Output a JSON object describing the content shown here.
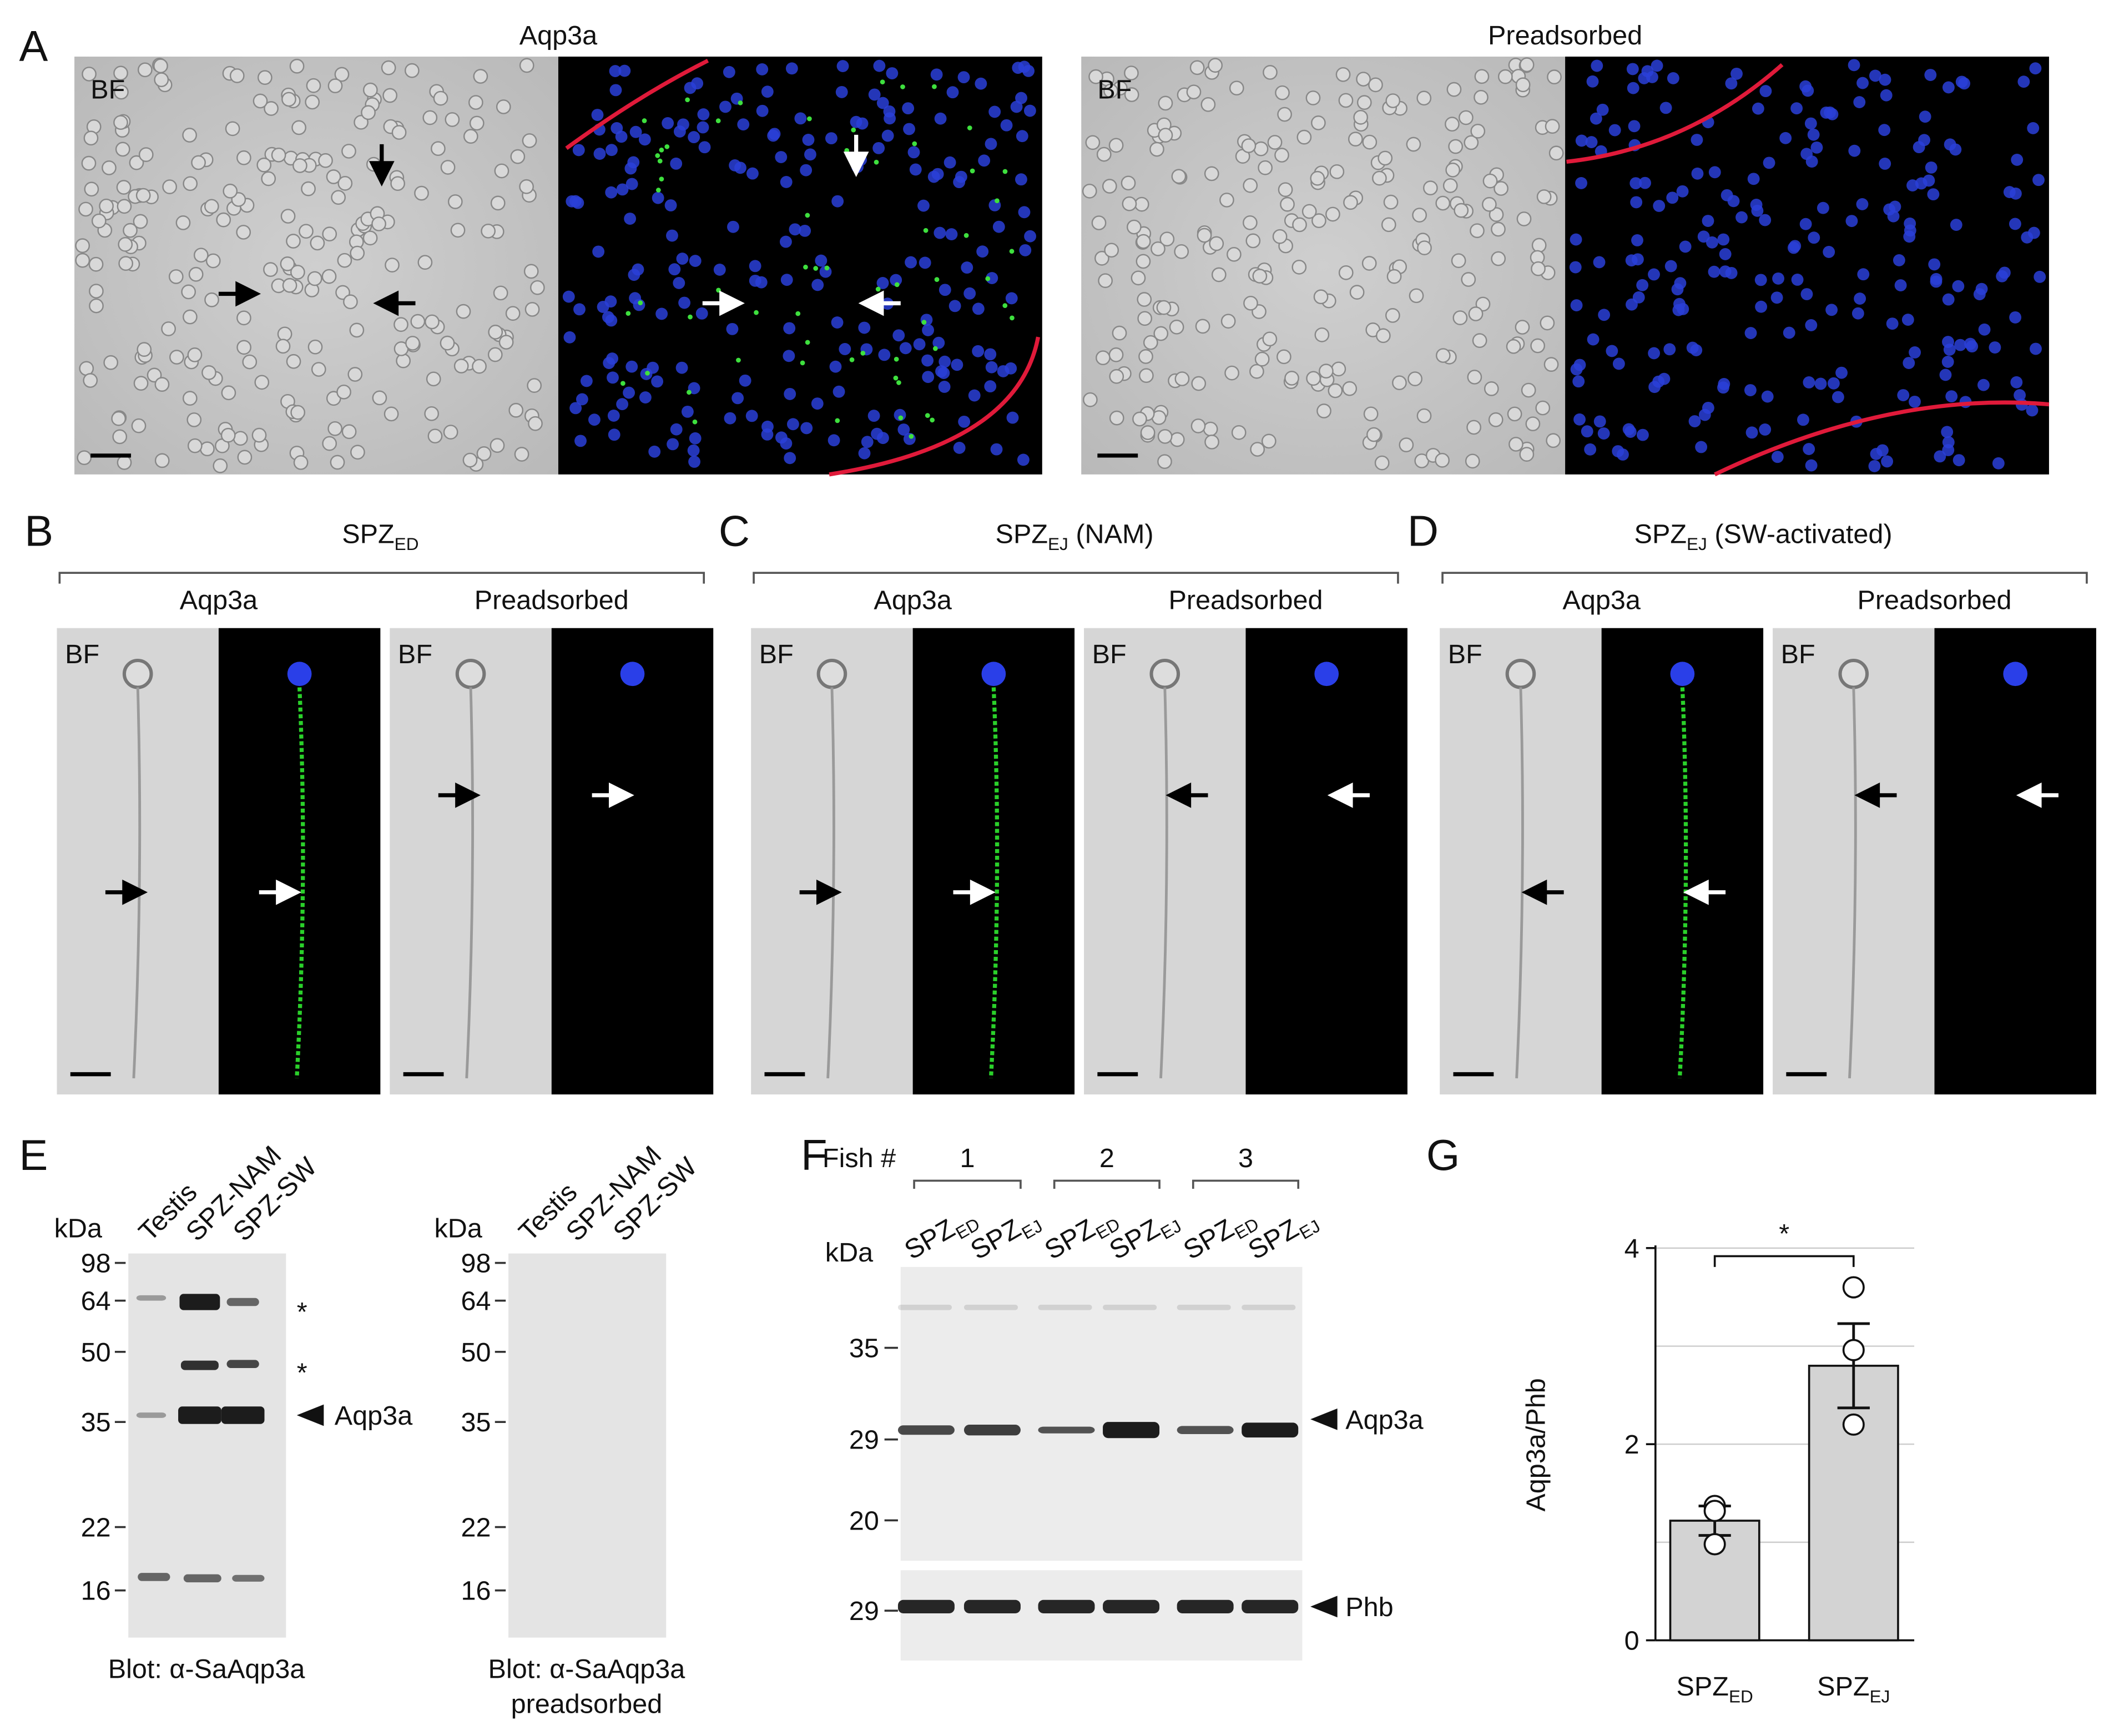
{
  "panel_a": {
    "letter": "A",
    "left": {
      "title": "Aqp3a",
      "bf": "BF"
    },
    "right": {
      "title": "Preadsorbed",
      "bf": "BF"
    }
  },
  "panels_bcd": [
    {
      "letter": "B",
      "title": {
        "base": "SPZ",
        "sub": "ED"
      },
      "left": {
        "title": "Aqp3a",
        "bf": "BF"
      },
      "right": {
        "title": "Preadsorbed",
        "bf": "BF"
      }
    },
    {
      "letter": "C",
      "title": {
        "base": "SPZ",
        "sub": "EJ",
        "suffix": " (NAM)"
      },
      "left": {
        "title": "Aqp3a",
        "bf": "BF"
      },
      "right": {
        "title": "Preadsorbed",
        "bf": "BF"
      }
    },
    {
      "letter": "D",
      "title": {
        "base": "SPZ",
        "sub": "EJ",
        "suffix": " (SW-activated)"
      },
      "left": {
        "title": "Aqp3a",
        "bf": "BF"
      },
      "right": {
        "title": "Preadsorbed",
        "bf": "BF"
      }
    }
  ],
  "panel_e": {
    "letter": "E",
    "asterisks": [
      "*",
      "*"
    ],
    "arrow_label": "Aqp3a",
    "blots": [
      {
        "lanes": [
          "Testis",
          "SPZ-NAM",
          "SPZ-SW"
        ],
        "kda": "kDa",
        "markers": [
          98,
          64,
          50,
          35,
          22,
          16
        ],
        "caption": [
          "Blot: α-SaAqp3a"
        ]
      },
      {
        "lanes": [
          "Testis",
          "SPZ-NAM",
          "SPZ-SW"
        ],
        "kda": "kDa",
        "markers": [
          98,
          64,
          50,
          35,
          22,
          16
        ],
        "caption": [
          "Blot: α-SaAqp3a",
          "preadsorbed"
        ]
      }
    ]
  },
  "panel_f": {
    "letter": "F",
    "fish_label": "Fish #",
    "fish": [
      "1",
      "2",
      "3"
    ],
    "lanes": [
      {
        "base": "SPZ",
        "sub": "ED"
      },
      {
        "base": "SPZ",
        "sub": "EJ"
      },
      {
        "base": "SPZ",
        "sub": "ED"
      },
      {
        "base": "SPZ",
        "sub": "EJ"
      },
      {
        "base": "SPZ",
        "sub": "ED"
      },
      {
        "base": "SPZ",
        "sub": "EJ"
      }
    ],
    "kda": "kDa",
    "markers": [
      35,
      29,
      20
    ],
    "phb_marker": 29,
    "labels": [
      "Aqp3a",
      "Phb"
    ]
  },
  "chart_data": {
    "type": "bar",
    "letter": "G",
    "ylabel": "Aqp3a/Phb",
    "significance": "*",
    "categories": [
      "SPZ",
      "SPZ"
    ],
    "category_subscripts": [
      "ED",
      "EJ"
    ],
    "values": [
      1.22,
      2.8
    ],
    "errors": [
      0.15,
      0.43
    ],
    "points": [
      [
        1.37,
        1.32,
        0.98
      ],
      [
        3.6,
        2.96,
        2.2
      ]
    ],
    "ylim": [
      0,
      4
    ],
    "yticks": [
      0,
      2,
      4
    ],
    "grid_lines": [
      1,
      2,
      3,
      4
    ],
    "color": "#d3d3d3"
  }
}
